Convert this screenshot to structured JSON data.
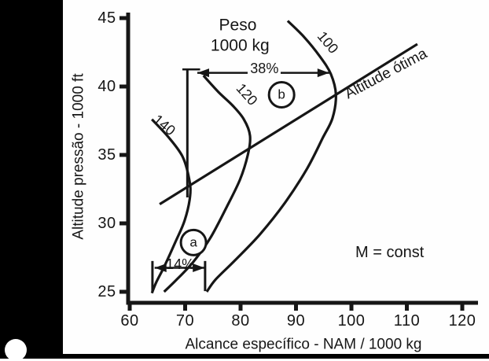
{
  "figure": {
    "kind": "scanned textbook figure",
    "ink_color": "#161616",
    "background_color": "#ffffff",
    "scan_border_color": "#000000"
  },
  "chart_data": {
    "type": "line",
    "title": "Peso 1000 kg",
    "xlabel": "Alcance específico - NAM / 1000 kg",
    "ylabel": "Altitude pressão - 1000 ft",
    "xlim": [
      60,
      120
    ],
    "ylim": [
      25,
      45
    ],
    "grid": false,
    "xticks": [
      60,
      70,
      80,
      90,
      100,
      110,
      120
    ],
    "yticks": [
      45,
      40,
      35,
      30,
      25
    ],
    "series": [
      {
        "name": "140",
        "points": [
          [
            64.0,
            37.6
          ],
          [
            67.0,
            36.3
          ],
          [
            69.5,
            34.9
          ],
          [
            70.7,
            33.3
          ],
          [
            70.9,
            32.0
          ],
          [
            69.9,
            30.2
          ],
          [
            68.2,
            28.6
          ],
          [
            66.3,
            26.9
          ],
          [
            64.8,
            25.7
          ],
          [
            64.0,
            24.9
          ]
        ]
      },
      {
        "name": "120",
        "points": [
          [
            73.3,
            40.8
          ],
          [
            76.0,
            39.6
          ],
          [
            78.6,
            38.6
          ],
          [
            80.6,
            37.6
          ],
          [
            81.7,
            36.4
          ],
          [
            81.3,
            35.0
          ],
          [
            79.9,
            33.2
          ],
          [
            77.5,
            31.2
          ],
          [
            74.5,
            28.9
          ],
          [
            71.5,
            27.2
          ],
          [
            68.5,
            25.9
          ],
          [
            66.2,
            25.0
          ]
        ]
      },
      {
        "name": "100",
        "points": [
          [
            88.5,
            44.8
          ],
          [
            91.5,
            43.6
          ],
          [
            94.3,
            42.2
          ],
          [
            96.3,
            40.9
          ],
          [
            97.2,
            39.4
          ],
          [
            96.6,
            37.7
          ],
          [
            94.9,
            36.3
          ],
          [
            92.0,
            34.0
          ],
          [
            88.0,
            31.5
          ],
          [
            83.5,
            29.2
          ],
          [
            79.0,
            27.3
          ],
          [
            75.5,
            25.9
          ],
          [
            73.9,
            25.0
          ]
        ]
      }
    ],
    "optimum_line": {
      "label": "Altitude ótima",
      "points": [
        [
          65.4,
          31.4
        ],
        [
          111.9,
          43.1
        ]
      ]
    },
    "labels": {
      "weight_line1": {
        "text": "Peso",
        "x": 79.5,
        "alt": 44.48
      },
      "weight_line2": {
        "text": "1000 kg",
        "x": 79.9,
        "alt": 42.98
      },
      "mach": {
        "text": "M = const",
        "x": 106.9,
        "alt": 27.85
      },
      "curve_140": {
        "text": "140",
        "x": 66.2,
        "alt": 37.2
      },
      "curve_120": {
        "text": "120",
        "x": 81.1,
        "alt": 39.4
      },
      "curve_100": {
        "text": "100",
        "x": 95.7,
        "alt": 43.2
      },
      "optimum": {
        "text": "Altitude ótima",
        "x": 106.2,
        "alt": 40.9
      }
    },
    "annotations": {
      "arrow_38": {
        "text": "38%",
        "alt": 41.0,
        "x_from": 72.2,
        "x_to": 96.0,
        "label_x": 84.3,
        "label_alt": 41.3
      },
      "arrow_14": {
        "text": "14%",
        "alt": 26.75,
        "x_from": 64.5,
        "x_to": 73.5,
        "label_x": 69.1,
        "label_alt": 27.0,
        "bars_x": [
          64.1,
          73.6
        ],
        "bars_alt": [
          25.05,
          27.25
        ]
      },
      "marker_a": {
        "text": "a",
        "x": 71.5,
        "alt": 28.6
      },
      "marker_b": {
        "text": "b",
        "x": 87.4,
        "alt": 39.4
      },
      "reference_vline": {
        "x": 70.4,
        "alt_from": 41.25,
        "alt_to": 31.9,
        "cap_x_from": 69.5,
        "cap_x_to": 72.7
      }
    }
  }
}
